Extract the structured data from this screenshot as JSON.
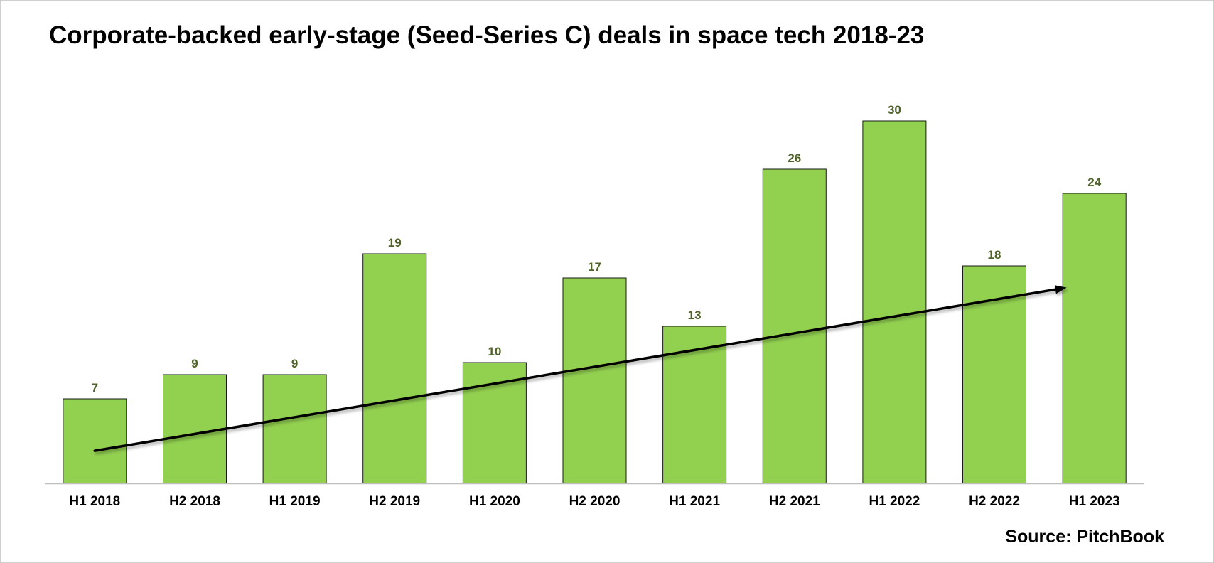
{
  "chart_data": {
    "type": "bar",
    "title": "Corporate-backed early-stage (Seed-Series C) deals in space tech 2018-23",
    "source": "Source: PitchBook",
    "categories": [
      "H1 2018",
      "H2 2018",
      "H1 2019",
      "H2 2019",
      "H1 2020",
      "H2 2020",
      "H1 2021",
      "H2 2021",
      "H1 2022",
      "H2 2022",
      "H1 2023"
    ],
    "values": [
      7,
      9,
      9,
      19,
      10,
      17,
      13,
      26,
      30,
      18,
      24
    ],
    "ylim": [
      0,
      30
    ],
    "grid": false,
    "legend": "none",
    "data_labels": true,
    "annotations": [
      {
        "type": "trend-arrow",
        "from_value": 2.7,
        "to_value": 16.2
      }
    ],
    "colors": {
      "bar_fill": "#92d050",
      "bar_stroke": "#1a1a1a",
      "data_label": "#4f6228",
      "arrow": "#000000",
      "axis": "#bfbfbf"
    }
  }
}
